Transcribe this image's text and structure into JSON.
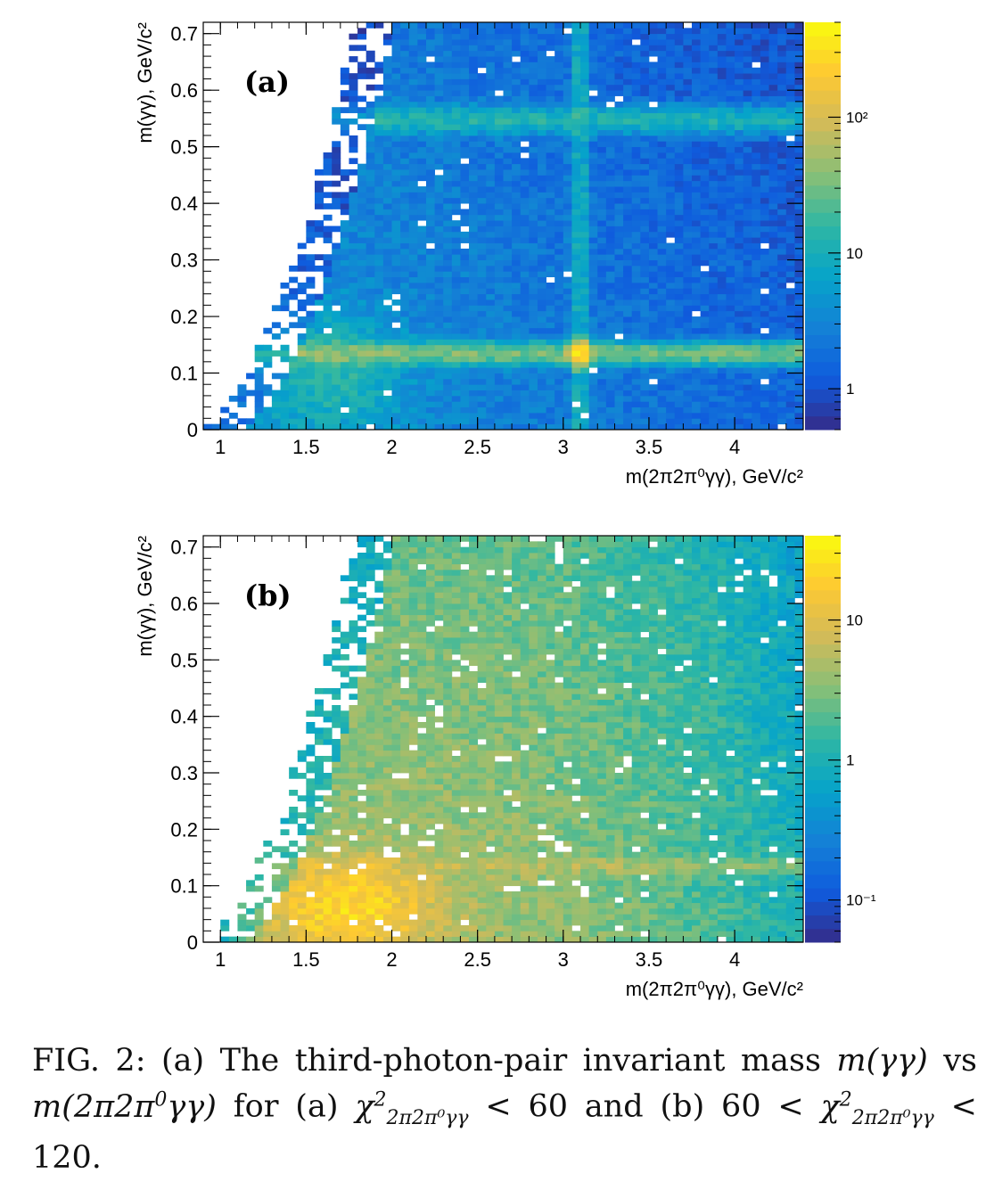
{
  "figure": {
    "colors": {
      "palette": "kBird",
      "empty_bin": "#ffffff",
      "frame": "#000000"
    },
    "caption": {
      "fig_label": "FIG. 2:",
      "text_1": "(a) The third-photon-pair invariant mass",
      "math_mgg": "m(γγ)",
      "vs": "vs",
      "math_m2pi": "m(2π2π",
      "math_m2pi_sup": "0",
      "math_m2pi_end": "γγ)",
      "for_a": "for (a)",
      "chi": "χ",
      "chi_sup": "2",
      "chi_sub": "2π2π⁰γγ",
      "lt60": "< 60 and (b) 60 <",
      "lt_end": "<",
      "num_120": "120."
    }
  },
  "chart_data": [
    {
      "type": "heatmap",
      "panel_label": "(a)",
      "xlabel": "m(2π2π⁰γγ), GeV/c²",
      "ylabel": "m(γγ), GeV/c²",
      "xlim": [
        0.9,
        4.4
      ],
      "ylim": [
        0,
        0.72
      ],
      "x_ticks": [
        1,
        1.5,
        2,
        2.5,
        3,
        3.5,
        4
      ],
      "x_tick_labels": [
        "1",
        "1.5",
        "2",
        "2.5",
        "3",
        "3.5",
        "4"
      ],
      "y_ticks": [
        0,
        0.1,
        0.2,
        0.3,
        0.4,
        0.5,
        0.6,
        0.7
      ],
      "y_tick_labels": [
        "0",
        "0.1",
        "0.2",
        "0.3",
        "0.4",
        "0.5",
        "0.6",
        "0.7"
      ],
      "z_scale": "log",
      "z_range": [
        0.5,
        500
      ],
      "z_ticks": [
        1,
        10,
        100
      ],
      "z_tick_labels": [
        "1",
        "10",
        "10²"
      ],
      "bins": {
        "nx": 70,
        "ny": 72
      },
      "features": [
        {
          "kind": "horizontal_band",
          "y": 0.135,
          "label": "π⁰ band"
        },
        {
          "kind": "horizontal_band",
          "y": 0.548,
          "label": "η band"
        },
        {
          "kind": "peak",
          "x": 3.097,
          "y": 0.135,
          "label": "J/ψ"
        }
      ],
      "grid": false,
      "legend": "colorbar-right"
    },
    {
      "type": "heatmap",
      "panel_label": "(b)",
      "xlabel": "m(2π2π⁰γγ), GeV/c²",
      "ylabel": "m(γγ), GeV/c²",
      "xlim": [
        0.9,
        4.4
      ],
      "ylim": [
        0,
        0.72
      ],
      "x_ticks": [
        1,
        1.5,
        2,
        2.5,
        3,
        3.5,
        4
      ],
      "x_tick_labels": [
        "1",
        "1.5",
        "2",
        "2.5",
        "3",
        "3.5",
        "4"
      ],
      "y_ticks": [
        0,
        0.1,
        0.2,
        0.3,
        0.4,
        0.5,
        0.6,
        0.7
      ],
      "y_tick_labels": [
        "0",
        "0.1",
        "0.2",
        "0.3",
        "0.4",
        "0.5",
        "0.6",
        "0.7"
      ],
      "z_scale": "log",
      "z_range": [
        0.05,
        40
      ],
      "z_ticks": [
        0.1,
        1,
        10
      ],
      "z_tick_labels": [
        "10⁻¹",
        "1",
        "10"
      ],
      "bins": {
        "nx": 70,
        "ny": 72
      },
      "features": [
        {
          "kind": "horizontal_band",
          "y": 0.135,
          "label": "π⁰ band"
        },
        {
          "kind": "blob",
          "x": 1.7,
          "y": 0.06,
          "label": "low-mass excess"
        }
      ],
      "grid": false,
      "legend": "colorbar-right"
    }
  ]
}
